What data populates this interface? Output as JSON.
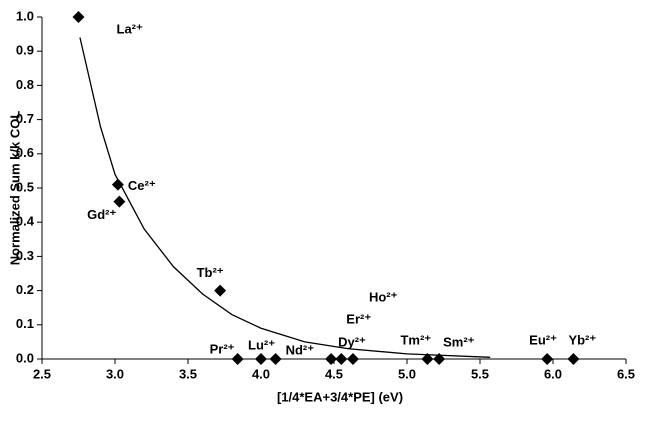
{
  "chart_data": {
    "type": "scatter",
    "x_label": "[1/4*EA+3/4*PE] (eV)",
    "y_label": "Normalized Sum k/k COL",
    "xlim": [
      2.5,
      6.5
    ],
    "xticks": [
      2.5,
      {
        "value": 3.0,
        "label": "3.0"
      },
      3.5,
      {
        "value": 4.0,
        "label": "4.0"
      },
      4.5,
      {
        "value": 5.0,
        "label": "5.0"
      },
      5.5,
      {
        "value": 6.0,
        "label": "6.0"
      },
      6.5
    ],
    "ylim": [
      0,
      1
    ],
    "yticks": [
      {
        "value": 0,
        "label": "0.0"
      },
      0.1,
      0.2,
      0.3,
      0.4,
      0.5,
      0.6,
      0.7,
      0.8,
      0.9,
      {
        "value": 1,
        "label": "1.0"
      }
    ],
    "series": [
      {
        "color": "#000000",
        "labels": [
          "La²⁺",
          "Ce²⁺",
          "Gd²⁺",
          "Tb²⁺",
          "Pr²⁺",
          "Lu²⁺",
          "Nd²⁺",
          "Dy²⁺",
          "Er²⁺",
          "Ho²⁺",
          "Tm²⁺",
          "Sm²⁺",
          "Eu²⁺",
          "Yb²⁺"
        ],
        "x": [
          2.75,
          3.02,
          3.03,
          3.72,
          3.84,
          4.0,
          4.1,
          4.48,
          4.55,
          4.63,
          5.14,
          5.22,
          5.96,
          6.14
        ],
        "values": [
          1.0,
          0.51,
          0.46,
          0.2,
          0,
          0,
          0,
          0,
          0,
          0,
          0,
          0,
          0,
          0
        ]
      },
      {
        "color": "#000000",
        "type": "line",
        "x": [
          2.76,
          2.9,
          3.0,
          3.2,
          3.4,
          3.6,
          3.8,
          4.0,
          4.3,
          4.6,
          5.0,
          5.57
        ],
        "values": [
          0.94,
          0.68,
          0.54,
          0.38,
          0.27,
          0.19,
          0.13,
          0.09,
          0.05,
          0.03,
          0.015,
          0.005
        ]
      }
    ]
  }
}
